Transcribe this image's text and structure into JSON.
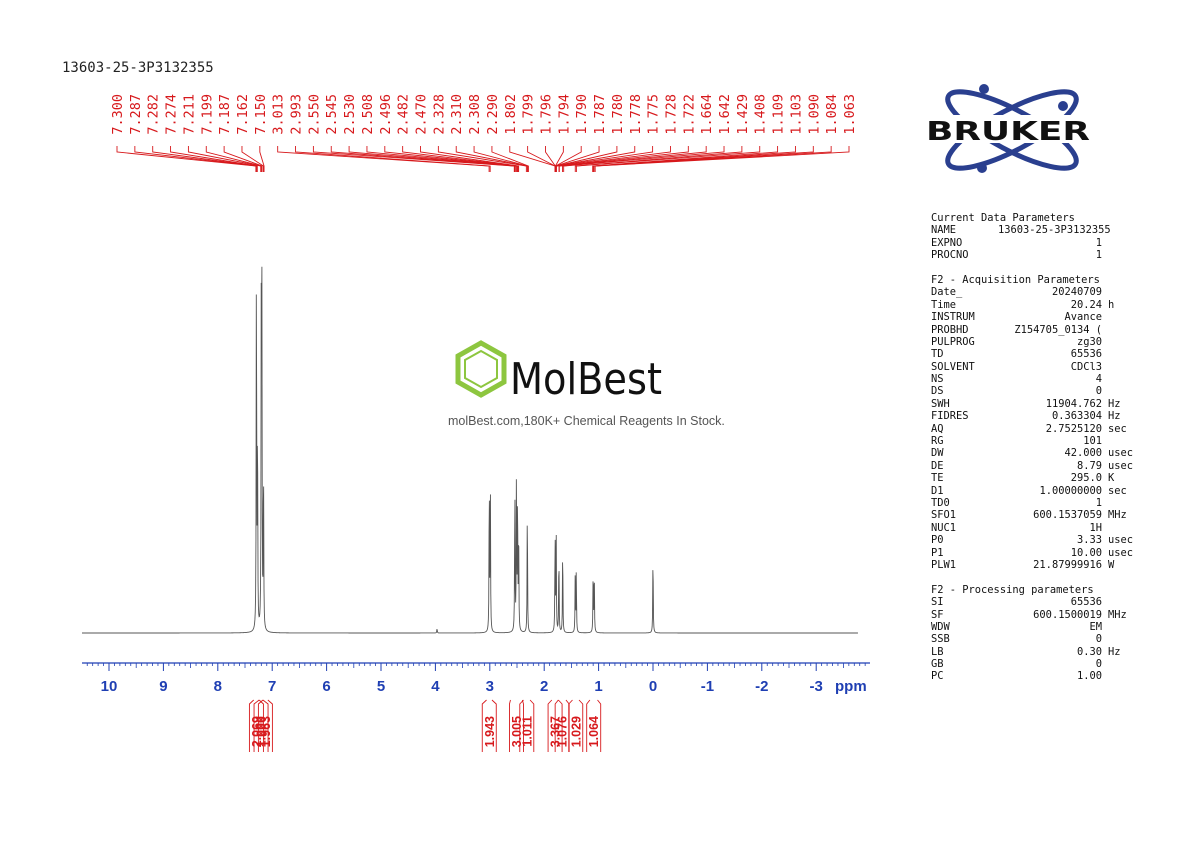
{
  "sample_id": "13603-25-3P3132355",
  "watermark": {
    "brand": "MolBest",
    "tagline": "molBest.com,180K+ Chemical Reagents In Stock."
  },
  "logo_text": "BRUKER",
  "colors": {
    "spectrum": "#555555",
    "peaks": "#d7191c",
    "axis": "#1f3fb3",
    "logo": "#2a3f8f",
    "molbest_green": "#8dc63f"
  },
  "parameters": {
    "current": {
      "title": "Current Data Parameters",
      "rows": [
        {
          "key": "NAME",
          "value": "13603-25-3P3132355",
          "unit": ""
        },
        {
          "key": "EXPNO",
          "value": "1",
          "unit": ""
        },
        {
          "key": "PROCNO",
          "value": "1",
          "unit": ""
        }
      ]
    },
    "acquisition": {
      "title": "F2 - Acquisition Parameters",
      "rows": [
        {
          "key": "Date_",
          "value": "20240709",
          "unit": ""
        },
        {
          "key": "Time",
          "value": "20.24",
          "unit": "h"
        },
        {
          "key": "INSTRUM",
          "value": "Avance",
          "unit": ""
        },
        {
          "key": "PROBHD",
          "value": "Z154705_0134 (",
          "unit": ""
        },
        {
          "key": "PULPROG",
          "value": "zg30",
          "unit": ""
        },
        {
          "key": "TD",
          "value": "65536",
          "unit": ""
        },
        {
          "key": "SOLVENT",
          "value": "CDCl3",
          "unit": ""
        },
        {
          "key": "NS",
          "value": "4",
          "unit": ""
        },
        {
          "key": "DS",
          "value": "0",
          "unit": ""
        },
        {
          "key": "SWH",
          "value": "11904.762",
          "unit": "Hz"
        },
        {
          "key": "FIDRES",
          "value": "0.363304",
          "unit": "Hz"
        },
        {
          "key": "AQ",
          "value": "2.7525120",
          "unit": "sec"
        },
        {
          "key": "RG",
          "value": "101",
          "unit": ""
        },
        {
          "key": "DW",
          "value": "42.000",
          "unit": "usec"
        },
        {
          "key": "DE",
          "value": "8.79",
          "unit": "usec"
        },
        {
          "key": "TE",
          "value": "295.0",
          "unit": "K"
        },
        {
          "key": "D1",
          "value": "1.00000000",
          "unit": "sec"
        },
        {
          "key": "TD0",
          "value": "1",
          "unit": ""
        },
        {
          "key": "SFO1",
          "value": "600.1537059",
          "unit": "MHz"
        },
        {
          "key": "NUC1",
          "value": "1H",
          "unit": ""
        },
        {
          "key": "P0",
          "value": "3.33",
          "unit": "usec"
        },
        {
          "key": "P1",
          "value": "10.00",
          "unit": "usec"
        },
        {
          "key": "PLW1",
          "value": "21.87999916",
          "unit": "W"
        }
      ]
    },
    "processing": {
      "title": "F2 - Processing parameters",
      "rows": [
        {
          "key": "SI",
          "value": "65536",
          "unit": ""
        },
        {
          "key": "SF",
          "value": "600.1500019",
          "unit": "MHz"
        },
        {
          "key": "WDW",
          "value": "EM",
          "unit": ""
        },
        {
          "key": "SSB",
          "value": "0",
          "unit": ""
        },
        {
          "key": "LB",
          "value": "0.30",
          "unit": "Hz"
        },
        {
          "key": "GB",
          "value": "0",
          "unit": ""
        },
        {
          "key": "PC",
          "value": "1.00",
          "unit": ""
        }
      ]
    }
  },
  "chart_data": {
    "type": "line",
    "xlabel": "ppm",
    "xlim": [
      10.5,
      -3.9
    ],
    "x_ticks": [
      "10",
      "9",
      "8",
      "7",
      "6",
      "5",
      "4",
      "3",
      "2",
      "1",
      "0",
      "-1",
      "-2",
      "-3"
    ],
    "x_tick_values": [
      10,
      9,
      8,
      7,
      6,
      5,
      4,
      3,
      2,
      1,
      0,
      -1,
      -2,
      -3
    ],
    "peak_labels": [
      "7.300",
      "7.287",
      "7.282",
      "7.274",
      "7.211",
      "7.199",
      "7.187",
      "7.162",
      "7.150",
      "3.013",
      "2.993",
      "2.550",
      "2.545",
      "2.530",
      "2.508",
      "2.496",
      "2.482",
      "2.470",
      "2.328",
      "2.310",
      "2.308",
      "2.290",
      "1.802",
      "1.799",
      "1.796",
      "1.794",
      "1.790",
      "1.787",
      "1.780",
      "1.778",
      "1.775",
      "1.728",
      "1.722",
      "1.664",
      "1.642",
      "1.429",
      "1.408",
      "1.109",
      "1.103",
      "1.090",
      "1.084",
      "1.063"
    ],
    "peak_values": [
      7.3,
      7.287,
      7.282,
      7.274,
      7.211,
      7.199,
      7.187,
      7.162,
      7.15,
      3.013,
      2.993,
      2.55,
      2.545,
      2.53,
      2.508,
      2.496,
      2.482,
      2.47,
      2.328,
      2.31,
      2.308,
      2.29,
      1.802,
      1.799,
      1.796,
      1.794,
      1.79,
      1.787,
      1.78,
      1.778,
      1.775,
      1.728,
      1.722,
      1.664,
      1.642,
      1.429,
      1.408,
      1.109,
      1.103,
      1.09,
      1.084,
      1.063
    ],
    "integrals": [
      {
        "label": "2.069",
        "from": 7.34,
        "to": 7.24
      },
      {
        "label": "1.000",
        "from": 7.24,
        "to": 7.17
      },
      {
        "label": "1.963",
        "from": 7.17,
        "to": 7.08
      },
      {
        "label": "1.943",
        "from": 3.06,
        "to": 2.96
      },
      {
        "label": "3.005",
        "from": 2.62,
        "to": 2.4
      },
      {
        "label": "1.011",
        "from": 2.38,
        "to": 2.26
      },
      {
        "label": "3.367",
        "from": 1.86,
        "to": 1.74
      },
      {
        "label": "1.076",
        "from": 1.74,
        "to": 1.6
      },
      {
        "label": "1.029",
        "from": 1.48,
        "to": 1.36
      },
      {
        "label": "1.064",
        "from": 1.16,
        "to": 1.02
      }
    ],
    "spectrum_peaks": [
      {
        "ppm": 7.29,
        "height": 1.0
      },
      {
        "ppm": 7.27,
        "height": 0.55
      },
      {
        "ppm": 7.2,
        "height": 0.93
      },
      {
        "ppm": 7.19,
        "height": 0.75
      },
      {
        "ppm": 7.16,
        "height": 0.46
      },
      {
        "ppm": 3.01,
        "height": 0.4
      },
      {
        "ppm": 2.99,
        "height": 0.38
      },
      {
        "ppm": 2.54,
        "height": 0.39
      },
      {
        "ppm": 2.51,
        "height": 0.41
      },
      {
        "ppm": 2.49,
        "height": 0.36
      },
      {
        "ppm": 2.47,
        "height": 0.28
      },
      {
        "ppm": 2.31,
        "height": 0.34
      },
      {
        "ppm": 1.8,
        "height": 0.26
      },
      {
        "ppm": 1.78,
        "height": 0.25
      },
      {
        "ppm": 1.73,
        "height": 0.21
      },
      {
        "ppm": 1.66,
        "height": 0.23
      },
      {
        "ppm": 1.43,
        "height": 0.14
      },
      {
        "ppm": 1.41,
        "height": 0.16
      },
      {
        "ppm": 1.1,
        "height": 0.17
      },
      {
        "ppm": 1.08,
        "height": 0.16
      },
      {
        "ppm": 0.0,
        "height": 0.21
      },
      {
        "ppm": 3.97,
        "height": 0.012
      }
    ]
  }
}
